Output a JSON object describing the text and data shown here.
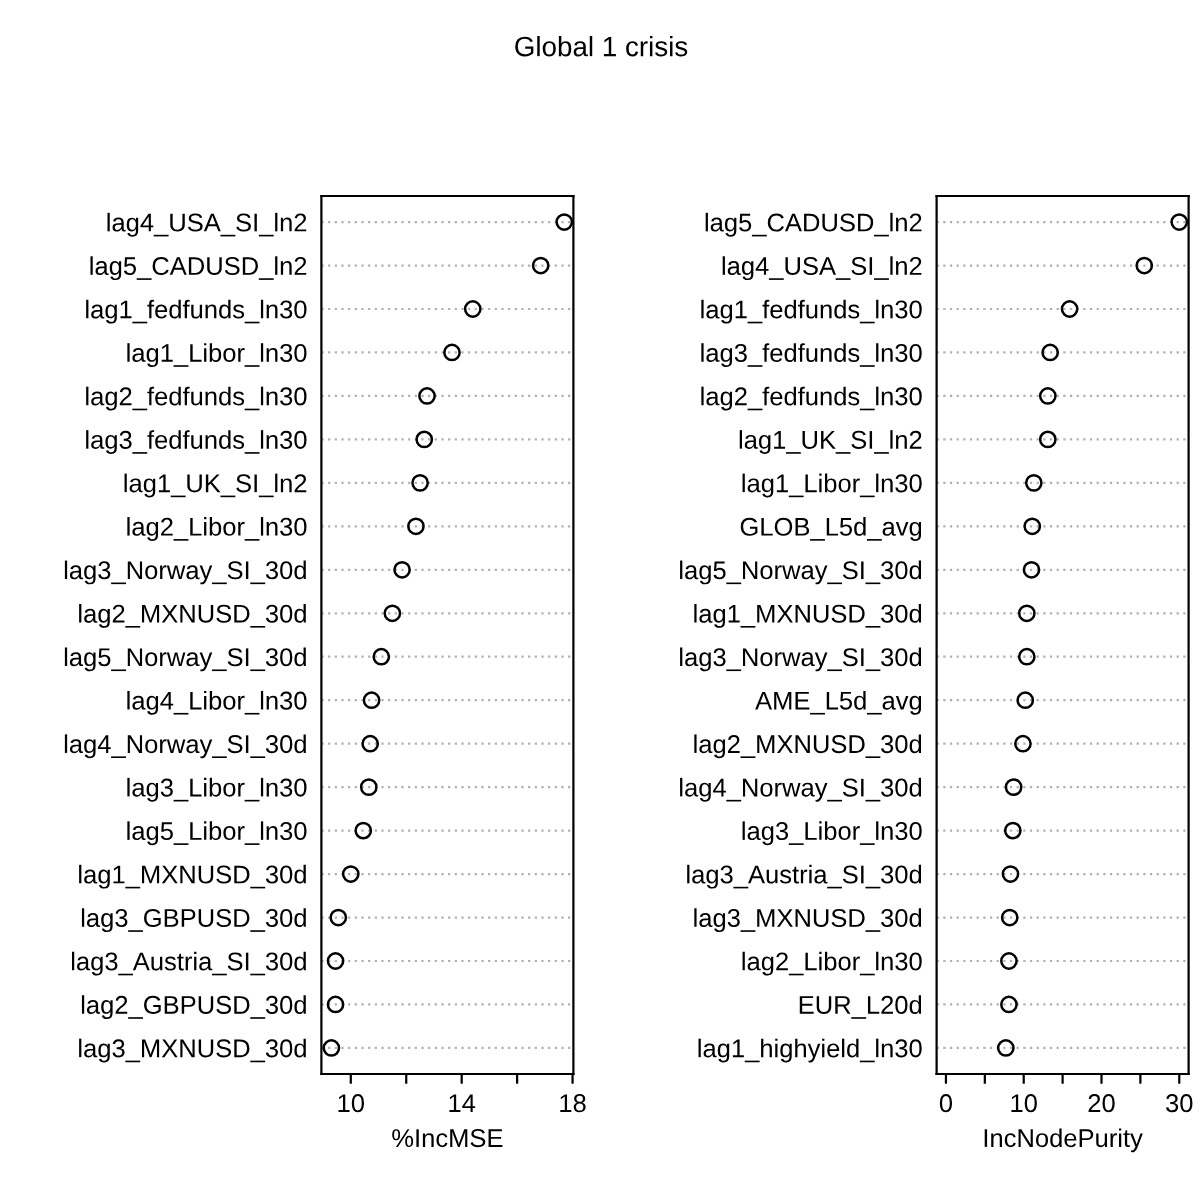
{
  "chart_data": [
    {
      "type": "scatter",
      "orientation": "horizontal",
      "title": "Global 1 crisis",
      "xlabel": "%IncMSE",
      "marker": "circle",
      "grid": "y",
      "color": "#000000",
      "categories": [
        "lag4_USA_SI_ln2",
        "lag5_CADUSD_ln2",
        "lag1_fedfunds_ln30",
        "lag1_Libor_ln30",
        "lag2_fedfunds_ln30",
        "lag3_fedfunds_ln30",
        "lag1_UK_SI_ln2",
        "lag2_Libor_ln30",
        "lag3_Norway_SI_30d",
        "lag2_MXNUSD_30d",
        "lag5_Norway_SI_30d",
        "lag4_Libor_ln30",
        "lag4_Norway_SI_30d",
        "lag3_Libor_ln30",
        "lag5_Libor_ln30",
        "lag1_MXNUSD_30d",
        "lag3_GBPUSD_30d",
        "lag3_Austria_SI_30d",
        "lag2_GBPUSD_30d",
        "lag3_MXNUSD_30d"
      ],
      "values": [
        17.7,
        16.85,
        14.4,
        13.65,
        12.75,
        12.65,
        12.5,
        12.35,
        11.85,
        11.5,
        11.1,
        10.75,
        10.7,
        10.65,
        10.45,
        10.0,
        9.55,
        9.45,
        9.45,
        9.3
      ],
      "xlim": [
        8.94,
        18.03
      ],
      "xticks": [
        10,
        {
          "value": 12,
          "label": null
        },
        14,
        {
          "value": 16,
          "label": null
        },
        18
      ]
    },
    {
      "type": "scatter",
      "orientation": "horizontal",
      "xlabel": "IncNodePurity",
      "marker": "circle",
      "grid": "y",
      "color": "#000000",
      "categories": [
        "lag5_CADUSD_ln2",
        "lag4_USA_SI_ln2",
        "lag1_fedfunds_ln30",
        "lag3_fedfunds_ln30",
        "lag2_fedfunds_ln30",
        "lag1_UK_SI_ln2",
        "lag1_Libor_ln30",
        "GLOB_L5d_avg",
        "lag5_Norway_SI_30d",
        "lag1_MXNUSD_30d",
        "lag3_Norway_SI_30d",
        "AME_L5d_avg",
        "lag2_MXNUSD_30d",
        "lag4_Norway_SI_30d",
        "lag3_Libor_ln30",
        "lag3_Austria_SI_30d",
        "lag3_MXNUSD_30d",
        "lag2_Libor_ln30",
        "EUR_L20d",
        "lag1_highyield_ln30"
      ],
      "values": [
        30.0,
        25.5,
        15.9,
        13.4,
        13.1,
        13.1,
        11.3,
        11.1,
        11.0,
        10.4,
        10.4,
        10.2,
        9.9,
        8.7,
        8.6,
        8.3,
        8.2,
        8.1,
        8.1,
        7.7
      ],
      "xlim": [
        -1.2,
        31.2
      ],
      "xticks": [
        0,
        {
          "value": 5,
          "label": null
        },
        10,
        {
          "value": 15,
          "label": null
        },
        20,
        {
          "value": 25,
          "label": null
        },
        30
      ]
    }
  ]
}
